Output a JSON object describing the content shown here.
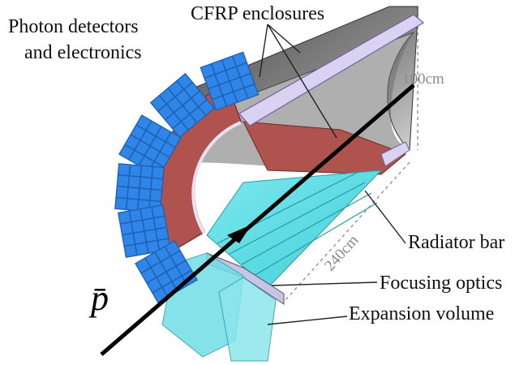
{
  "labels": {
    "photon_detectors": [
      "Photon detectors",
      "and electronics"
    ],
    "cfrp": "CFRP enclosures",
    "height": "100cm",
    "radiator": "Radiator bar",
    "length": "240cm",
    "focusing": "Focusing optics",
    "expansion": "Expansion volume",
    "particle": "p̄"
  }
}
